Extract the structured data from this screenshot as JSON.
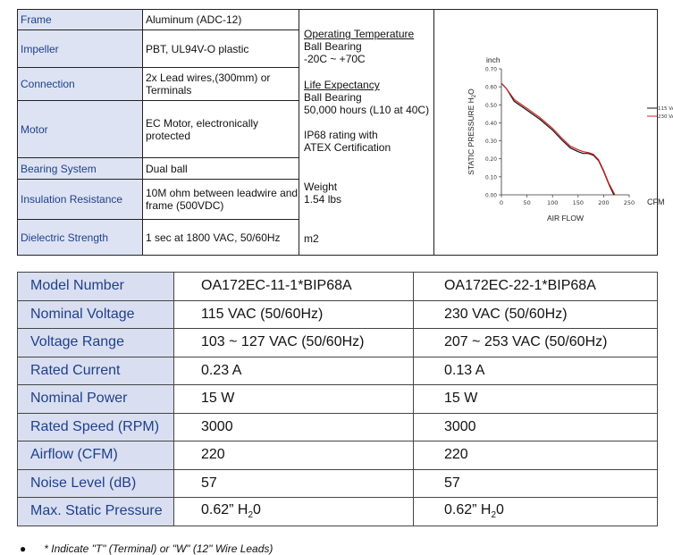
{
  "spec_rows": [
    {
      "label": "Frame",
      "value": "Aluminum (ADC-12)"
    },
    {
      "label": "Impeller",
      "value": "PBT, UL94V-O plastic"
    },
    {
      "label": "Connection",
      "value": "2x Lead wires,(300mm) or Terminals"
    },
    {
      "label": "Motor",
      "value": "EC Motor, electronically protected"
    },
    {
      "label": "Bearing System",
      "value": "Dual ball"
    },
    {
      "label": "Insulation Resistance",
      "value": "10M ohm between leadwire and frame (500VDC)"
    },
    {
      "label": "Dielectric Strength",
      "value": "1 sec at 1800 VAC, 50/60Hz"
    }
  ],
  "middle": {
    "op_temp_title": "Operating  Temperature",
    "op_temp_line1": "Ball Bearing",
    "op_temp_line2": "-20C ~ +70C",
    "life_title": "Life Expectancy",
    "life_line1": "Ball Bearing",
    "life_line2": "50,000 hours (L10 at 40C)",
    "ip_line1": "IP68 rating with",
    "ip_line2": "ATEX Certification",
    "weight_label": "Weight",
    "weight_value": "1.54 lbs",
    "m2": "m2"
  },
  "chart_data": {
    "type": "line",
    "y_unit_label": "inch",
    "ylabel": "STATIC PRESSURE H",
    "ylabel_sub": "2",
    "ylabel_tail": "O",
    "xlabel": "AIR FLOW",
    "x_unit_label": "CFM",
    "xlim": [
      0,
      250
    ],
    "ylim": [
      0,
      0.7
    ],
    "xticks": [
      "0",
      "50",
      "100",
      "150",
      "200",
      "250"
    ],
    "yticks": [
      "0.00",
      "0.10",
      "0.20",
      "0.30",
      "0.40",
      "0.50",
      "0.60",
      "0.70"
    ],
    "series": [
      {
        "name": "115 VAC",
        "color": "#111111",
        "x": [
          0,
          10,
          25,
          50,
          75,
          100,
          120,
          135,
          150,
          160,
          170,
          180,
          190,
          200,
          210,
          220
        ],
        "y": [
          0.62,
          0.59,
          0.52,
          0.47,
          0.42,
          0.36,
          0.3,
          0.26,
          0.24,
          0.23,
          0.23,
          0.22,
          0.19,
          0.13,
          0.06,
          0.0
        ]
      },
      {
        "name": "230 VAC",
        "color": "#d62020",
        "x": [
          0,
          10,
          25,
          50,
          75,
          100,
          120,
          135,
          150,
          160,
          170,
          180,
          190,
          200,
          210,
          222
        ],
        "y": [
          0.62,
          0.59,
          0.53,
          0.48,
          0.43,
          0.37,
          0.31,
          0.27,
          0.25,
          0.24,
          0.235,
          0.225,
          0.195,
          0.135,
          0.065,
          0.0
        ]
      }
    ]
  },
  "models": {
    "headers": [
      "Model Number",
      "OA172EC-11-1*BIP68A",
      "OA172EC-22-1*BIP68A"
    ],
    "rows": [
      [
        "Nominal Voltage",
        "115 VAC (50/60Hz)",
        "230 VAC (50/60Hz)"
      ],
      [
        "Voltage Range",
        "103 ~ 127 VAC (50/60Hz)",
        "207 ~ 253 VAC (50/60Hz)"
      ],
      [
        "Rated Current",
        "0.23 A",
        "0.13 A"
      ],
      [
        "Nominal Power",
        "15 W",
        "15 W"
      ],
      [
        "Rated Speed (RPM)",
        "3000",
        "3000"
      ],
      [
        "Airflow (CFM)",
        "220",
        "220"
      ],
      [
        "Noise Level (dB)",
        "57",
        "57"
      ]
    ],
    "static_label": "Max. Static Pressure",
    "static_value": "0.62” H",
    "static_sub": "2",
    "static_tail": "0"
  },
  "footnote": {
    "bullet": "●",
    "text": "* Indicate \"T\" (Terminal)  or \"W\" (12\" Wire Leads)"
  }
}
